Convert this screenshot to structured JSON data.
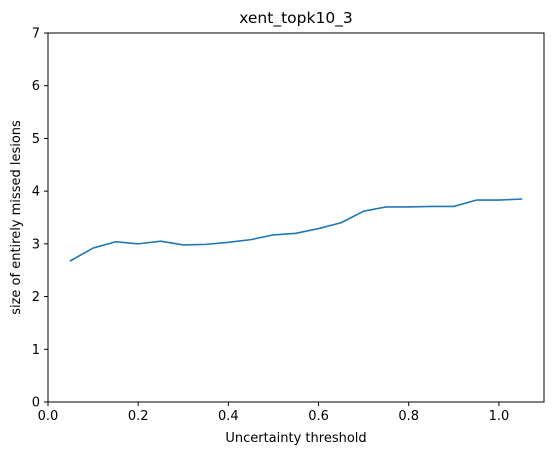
{
  "chart_data": {
    "type": "line",
    "title": "xent_topk10_3",
    "xlabel": "Uncertainty threshold",
    "ylabel": "size of entirely missed lesions",
    "xlim": [
      0.0,
      1.1
    ],
    "ylim": [
      0,
      7
    ],
    "xticks": [
      0.0,
      0.2,
      0.4,
      0.6,
      0.8,
      1.0
    ],
    "xtick_labels": [
      "0.0",
      "0.2",
      "0.4",
      "0.6",
      "0.8",
      "1.0"
    ],
    "yticks": [
      0,
      1,
      2,
      3,
      4,
      5,
      6,
      7
    ],
    "ytick_labels": [
      "0",
      "1",
      "2",
      "3",
      "4",
      "5",
      "6",
      "7"
    ],
    "grid": false,
    "series": [
      {
        "color": "#1f77b4",
        "x": [
          0.05,
          0.1,
          0.15,
          0.2,
          0.25,
          0.3,
          0.35,
          0.4,
          0.45,
          0.5,
          0.55,
          0.6,
          0.65,
          0.7,
          0.75,
          0.8,
          0.85,
          0.9,
          0.95,
          1.0,
          1.05
        ],
        "y": [
          2.68,
          2.92,
          3.04,
          3.0,
          3.05,
          2.98,
          2.99,
          3.03,
          3.08,
          3.17,
          3.2,
          3.29,
          3.4,
          3.62,
          3.7,
          3.7,
          3.71,
          3.71,
          3.83,
          3.83,
          3.85
        ]
      }
    ]
  }
}
